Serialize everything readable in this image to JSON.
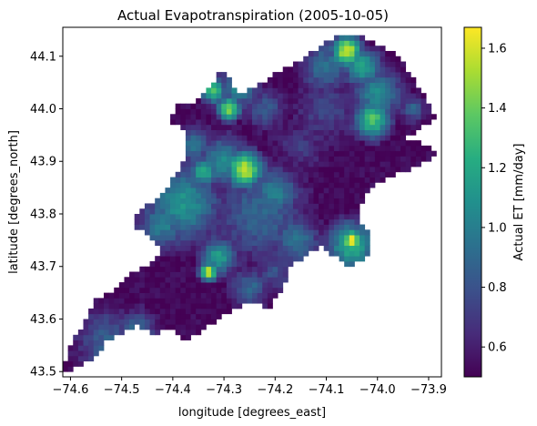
{
  "chart_data": {
    "type": "heatmap",
    "title": "Actual Evapotranspiration (2005-10-05)",
    "xlabel": "longitude [degrees_east]",
    "ylabel": "latitude [degrees_north]",
    "colorbar_label": "Actual ET [mm/day]",
    "colormap": "viridis",
    "xlim": [
      -74.615,
      -73.875
    ],
    "ylim": [
      43.49,
      44.155
    ],
    "clim": [
      0.5,
      1.67
    ],
    "x_ticks": [
      -74.6,
      -74.5,
      -74.4,
      -74.3,
      -74.2,
      -74.1,
      -74.0,
      -73.9
    ],
    "x_tick_labels": [
      "−74.6",
      "−74.5",
      "−74.4",
      "−74.3",
      "−74.2",
      "−74.1",
      "−74.0",
      "−73.9"
    ],
    "y_ticks": [
      43.5,
      43.6,
      43.7,
      43.8,
      43.9,
      44.0,
      44.1
    ],
    "y_tick_labels": [
      "43.5",
      "43.6",
      "43.7",
      "43.8",
      "43.9",
      "44.0",
      "44.1"
    ],
    "colorbar_ticks": [
      0.6,
      0.8,
      1.0,
      1.2,
      1.4,
      1.6
    ],
    "colorbar_tick_labels": [
      "0.6",
      "0.8",
      "1.0",
      "1.2",
      "1.4",
      "1.6"
    ],
    "grid": false,
    "cell_size_deg": 0.01,
    "base_value": 0.52,
    "region_polygon": [
      [
        -74.605,
        43.5
      ],
      [
        -74.56,
        43.52
      ],
      [
        -74.53,
        43.555
      ],
      [
        -74.5,
        43.57
      ],
      [
        -74.47,
        43.59
      ],
      [
        -74.44,
        43.57
      ],
      [
        -74.4,
        43.58
      ],
      [
        -74.38,
        43.555
      ],
      [
        -74.36,
        43.565
      ],
      [
        -74.34,
        43.58
      ],
      [
        -74.31,
        43.6
      ],
      [
        -74.27,
        43.62
      ],
      [
        -74.24,
        43.635
      ],
      [
        -74.21,
        43.62
      ],
      [
        -74.185,
        43.66
      ],
      [
        -74.17,
        43.7
      ],
      [
        -74.14,
        43.72
      ],
      [
        -74.11,
        43.74
      ],
      [
        -74.07,
        43.71
      ],
      [
        -74.05,
        43.7
      ],
      [
        -74.02,
        43.715
      ],
      [
        -74.015,
        43.76
      ],
      [
        -74.04,
        43.8
      ],
      [
        -74.02,
        43.84
      ],
      [
        -73.98,
        43.87
      ],
      [
        -73.92,
        43.89
      ],
      [
        -73.88,
        43.91
      ],
      [
        -73.91,
        43.935
      ],
      [
        -73.96,
        43.935
      ],
      [
        -73.92,
        43.96
      ],
      [
        -73.885,
        43.985
      ],
      [
        -73.905,
        44.02
      ],
      [
        -73.93,
        44.06
      ],
      [
        -73.96,
        44.1
      ],
      [
        -73.99,
        44.12
      ],
      [
        -74.03,
        44.14
      ],
      [
        -74.07,
        44.14
      ],
      [
        -74.11,
        44.12
      ],
      [
        -74.14,
        44.1
      ],
      [
        -74.17,
        44.08
      ],
      [
        -74.21,
        44.06
      ],
      [
        -74.24,
        44.04
      ],
      [
        -74.27,
        44.03
      ],
      [
        -74.3,
        44.07
      ],
      [
        -74.31,
        44.065
      ],
      [
        -74.33,
        44.04
      ],
      [
        -74.36,
        44.01
      ],
      [
        -74.39,
        44.005
      ],
      [
        -74.41,
        43.98
      ],
      [
        -74.38,
        43.96
      ],
      [
        -74.37,
        43.91
      ],
      [
        -74.4,
        43.865
      ],
      [
        -74.43,
        43.83
      ],
      [
        -74.47,
        43.8
      ],
      [
        -74.48,
        43.78
      ],
      [
        -74.45,
        43.76
      ],
      [
        -74.42,
        43.73
      ],
      [
        -74.45,
        43.7
      ],
      [
        -74.49,
        43.68
      ],
      [
        -74.52,
        43.65
      ],
      [
        -74.55,
        43.64
      ],
      [
        -74.57,
        43.6
      ],
      [
        -74.6,
        43.55
      ],
      [
        -74.615,
        43.5
      ]
    ],
    "value_blobs": [
      {
        "lon": -74.06,
        "lat": 44.11,
        "radius": 0.025,
        "value": 1.62
      },
      {
        "lon": -74.03,
        "lat": 44.08,
        "radius": 0.03,
        "value": 1.2
      },
      {
        "lon": -74.1,
        "lat": 44.08,
        "radius": 0.04,
        "value": 0.95
      },
      {
        "lon": -74.0,
        "lat": 44.03,
        "radius": 0.04,
        "value": 1.05
      },
      {
        "lon": -74.01,
        "lat": 43.98,
        "radius": 0.03,
        "value": 1.35
      },
      {
        "lon": -73.93,
        "lat": 44.0,
        "radius": 0.02,
        "value": 0.9
      },
      {
        "lon": -74.05,
        "lat": 43.75,
        "radius": 0.018,
        "value": 1.67
      },
      {
        "lon": -74.05,
        "lat": 43.74,
        "radius": 0.04,
        "value": 1.25
      },
      {
        "lon": -74.02,
        "lat": 43.76,
        "radius": 0.02,
        "value": 0.95
      },
      {
        "lon": -74.26,
        "lat": 43.885,
        "radius": 0.03,
        "value": 1.6
      },
      {
        "lon": -74.3,
        "lat": 43.9,
        "radius": 0.04,
        "value": 1.05
      },
      {
        "lon": -74.34,
        "lat": 43.88,
        "radius": 0.025,
        "value": 1.2
      },
      {
        "lon": -74.32,
        "lat": 44.035,
        "radius": 0.02,
        "value": 1.4
      },
      {
        "lon": -74.29,
        "lat": 44.0,
        "radius": 0.02,
        "value": 1.45
      },
      {
        "lon": -74.27,
        "lat": 44.04,
        "radius": 0.03,
        "value": 1.05
      },
      {
        "lon": -74.22,
        "lat": 44.0,
        "radius": 0.03,
        "value": 0.85
      },
      {
        "lon": -74.33,
        "lat": 43.69,
        "radius": 0.015,
        "value": 1.6
      },
      {
        "lon": -74.31,
        "lat": 43.72,
        "radius": 0.03,
        "value": 1.15
      },
      {
        "lon": -74.38,
        "lat": 43.82,
        "radius": 0.06,
        "value": 1.1
      },
      {
        "lon": -74.42,
        "lat": 43.78,
        "radius": 0.04,
        "value": 1.0
      },
      {
        "lon": -74.23,
        "lat": 43.8,
        "radius": 0.07,
        "value": 0.9
      },
      {
        "lon": -74.2,
        "lat": 43.84,
        "radius": 0.04,
        "value": 1.0
      },
      {
        "lon": -74.16,
        "lat": 43.75,
        "radius": 0.04,
        "value": 0.95
      },
      {
        "lon": -74.2,
        "lat": 43.69,
        "radius": 0.03,
        "value": 0.8
      },
      {
        "lon": -74.25,
        "lat": 43.66,
        "radius": 0.03,
        "value": 0.9
      },
      {
        "lon": -74.53,
        "lat": 43.56,
        "radius": 0.05,
        "value": 0.85
      },
      {
        "lon": -74.47,
        "lat": 43.58,
        "radius": 0.03,
        "value": 0.9
      },
      {
        "lon": -74.36,
        "lat": 43.93,
        "radius": 0.03,
        "value": 0.95
      },
      {
        "lon": -74.15,
        "lat": 43.93,
        "radius": 0.04,
        "value": 0.7
      },
      {
        "lon": -74.1,
        "lat": 44.0,
        "radius": 0.05,
        "value": 0.75
      }
    ]
  }
}
